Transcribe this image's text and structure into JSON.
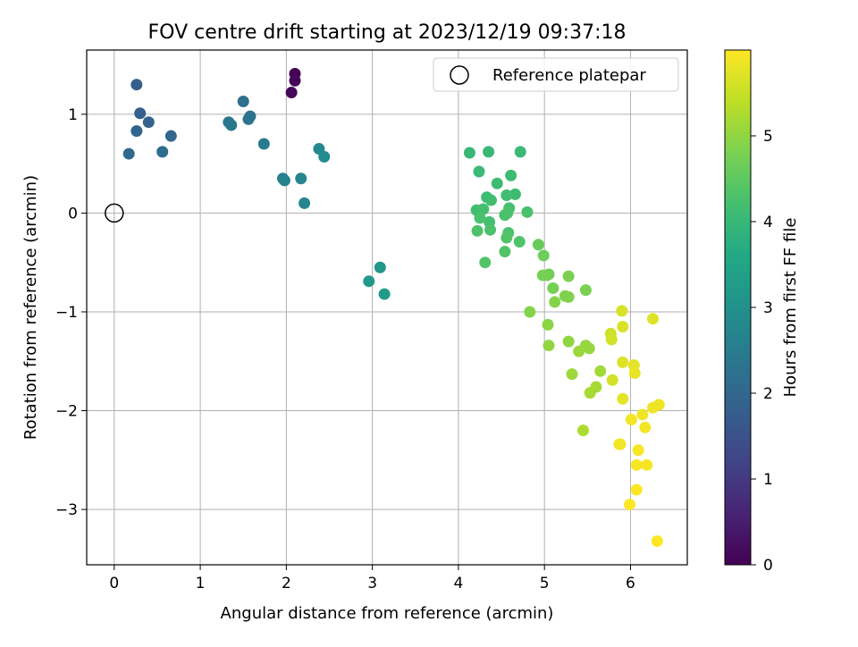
{
  "chart_data": {
    "type": "scatter",
    "title": "FOV centre drift starting at 2023/12/19 09:37:18",
    "xlabel": "Angular distance from reference (arcmin)",
    "ylabel": "Rotation from reference (arcmin)",
    "xlim": [
      -0.32,
      6.66
    ],
    "ylim": [
      -3.56,
      1.65
    ],
    "xticks": [
      0,
      1,
      2,
      3,
      4,
      5,
      6
    ],
    "yticks": [
      1,
      0,
      -1,
      -2,
      -3
    ],
    "xtick_labels": [
      "0",
      "1",
      "2",
      "3",
      "4",
      "5",
      "6"
    ],
    "ytick_labels": [
      "1",
      "0",
      "−1",
      "−2",
      "−3"
    ],
    "grid": true,
    "legend": {
      "placement": "top-right",
      "entries": [
        "Reference platepar"
      ]
    },
    "reference_point": {
      "x": 0,
      "y": 0
    },
    "colorbar": {
      "label": "Hours from first FF file",
      "colormap": "viridis",
      "range": [
        0,
        6.0
      ],
      "ticks": [
        0,
        1,
        2,
        3,
        4,
        5
      ],
      "tick_labels": [
        "0",
        "1",
        "2",
        "3",
        "4",
        "5"
      ]
    },
    "series": [
      {
        "x": [
          2.1,
          2.1,
          2.06,
          0.26,
          0.3,
          0.4,
          0.26,
          0.66,
          0.17,
          0.56,
          1.5,
          1.58,
          1.56,
          1.33,
          1.36,
          1.74,
          1.96,
          1.98,
          2.17,
          2.21,
          2.38,
          2.44,
          3.09,
          2.96,
          3.14,
          4.13,
          4.35,
          4.72,
          4.24,
          4.61,
          4.45,
          4.33,
          4.66,
          4.56,
          4.38,
          4.21,
          4.29,
          4.59,
          4.36,
          4.25,
          4.8,
          4.57,
          4.54,
          4.22,
          4.37,
          4.58,
          4.71,
          4.56,
          4.54,
          4.31,
          4.93,
          4.99,
          5.05,
          5.03,
          4.98,
          5.1,
          5.28,
          5.48,
          5.24,
          5.28,
          5.12,
          4.83,
          5.04,
          5.05,
          5.28,
          5.48,
          5.52,
          5.4,
          5.32,
          5.65,
          5.6,
          5.53,
          5.45,
          5.77,
          5.78,
          5.79,
          5.9,
          5.91,
          5.91,
          6.26,
          5.91,
          6.04,
          6.05,
          5.88,
          6.33,
          6.26,
          6.14,
          6.01,
          6.17,
          5.87,
          6.09,
          6.07,
          6.19,
          6.07,
          5.99,
          6.31
        ],
        "y": [
          1.41,
          1.34,
          1.22,
          1.3,
          1.01,
          0.92,
          0.83,
          0.78,
          0.6,
          0.62,
          1.13,
          0.98,
          0.95,
          0.92,
          0.89,
          0.7,
          0.35,
          0.33,
          0.35,
          0.1,
          0.65,
          0.57,
          -0.55,
          -0.69,
          -0.82,
          0.61,
          0.62,
          0.62,
          0.42,
          0.38,
          0.3,
          0.16,
          0.19,
          0.18,
          0.13,
          0.03,
          0.04,
          0.05,
          -0.09,
          -0.05,
          0.01,
          0.0,
          -0.02,
          -0.18,
          -0.17,
          -0.2,
          -0.29,
          -0.25,
          -0.39,
          -0.5,
          -0.32,
          -0.43,
          -0.62,
          -0.63,
          -0.63,
          -0.76,
          -0.64,
          -0.78,
          -0.84,
          -0.85,
          -0.9,
          -1.0,
          -1.13,
          -1.34,
          -1.3,
          -1.34,
          -1.37,
          -1.4,
          -1.63,
          -1.6,
          -1.76,
          -1.82,
          -2.2,
          -1.22,
          -1.28,
          -1.69,
          -0.99,
          -1.15,
          -1.51,
          -1.07,
          -1.88,
          -1.54,
          -1.62,
          -2.34,
          -1.94,
          -1.97,
          -2.04,
          -2.09,
          -2.17,
          -2.34,
          -2.4,
          -2.55,
          -2.55,
          -2.8,
          -2.95,
          -3.32
        ],
        "c": [
          0.0,
          0.05,
          0.1,
          1.8,
          1.85,
          1.9,
          1.95,
          2.0,
          2.05,
          2.1,
          2.2,
          2.25,
          2.3,
          2.35,
          2.4,
          2.5,
          2.6,
          2.65,
          2.7,
          2.75,
          2.8,
          2.85,
          3.15,
          3.2,
          3.25,
          4.0,
          4.0,
          4.05,
          4.05,
          4.1,
          4.1,
          4.1,
          4.1,
          4.15,
          4.15,
          4.15,
          4.2,
          4.2,
          4.2,
          4.25,
          4.25,
          4.25,
          4.25,
          4.3,
          4.3,
          4.3,
          4.35,
          4.35,
          4.35,
          4.35,
          4.6,
          4.65,
          4.7,
          4.7,
          4.75,
          4.75,
          4.8,
          4.8,
          4.85,
          4.85,
          4.9,
          4.9,
          4.95,
          5.0,
          5.0,
          5.05,
          5.05,
          5.1,
          5.1,
          5.15,
          5.2,
          5.2,
          5.25,
          5.55,
          5.6,
          5.6,
          5.65,
          5.65,
          5.7,
          5.7,
          5.75,
          5.75,
          5.8,
          5.8,
          5.85,
          5.85,
          5.85,
          5.9,
          5.9,
          5.9,
          5.95,
          5.95,
          5.95,
          6.0,
          6.0,
          6.0
        ]
      }
    ]
  }
}
